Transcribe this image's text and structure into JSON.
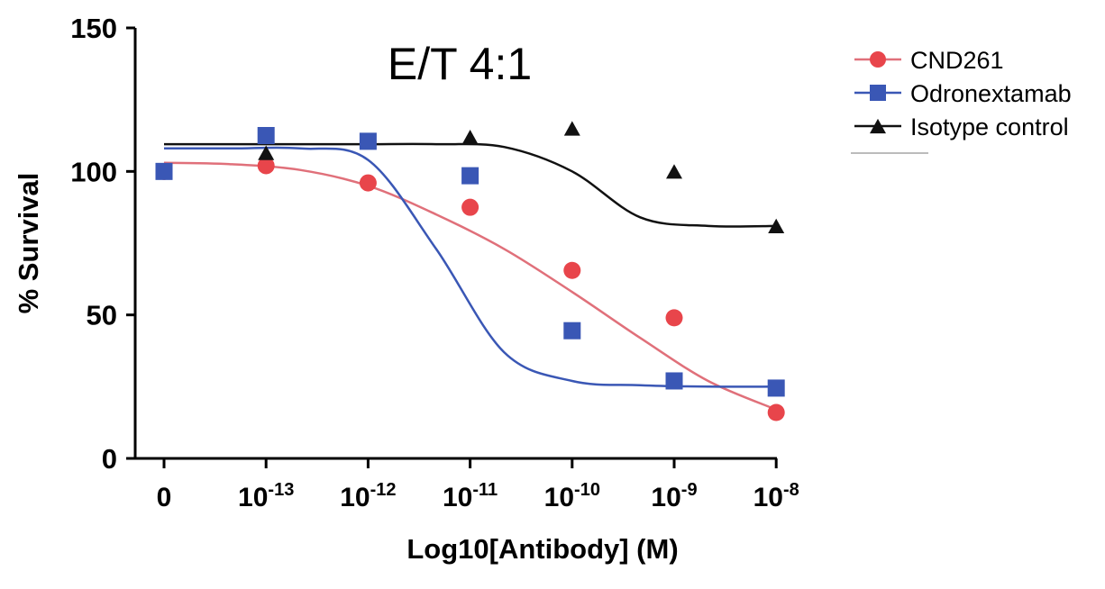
{
  "chart_data": {
    "type": "scatter",
    "title": "E/T 4:1",
    "xlabel": "Log10[Antibody] (M)",
    "ylabel": "% Survival",
    "ylim": [
      0,
      150
    ],
    "yticks": [
      0,
      50,
      100,
      150
    ],
    "x_tick_labels": [
      {
        "base": "0",
        "exp": ""
      },
      {
        "base": "10",
        "exp": "-13"
      },
      {
        "base": "10",
        "exp": "-12"
      },
      {
        "base": "10",
        "exp": "-11"
      },
      {
        "base": "10",
        "exp": "-10"
      },
      {
        "base": "10",
        "exp": "-9"
      },
      {
        "base": "10",
        "exp": "-8"
      }
    ],
    "grid": false,
    "legend_position": "top-right",
    "series": [
      {
        "name": "CND261",
        "marker": "circle",
        "color": "#e8454b",
        "line_color": "#e0707a",
        "values": [
          100,
          102,
          96,
          87.5,
          65.5,
          49,
          16
        ],
        "fit": [
          103,
          102.5,
          100.5,
          95,
          85,
          73,
          58,
          42,
          27,
          17
        ]
      },
      {
        "name": "Odronextamab",
        "marker": "square",
        "color": "#3a57b5",
        "line_color": "#3a57b5",
        "values": [
          100,
          112.5,
          110.5,
          98.5,
          44.5,
          27,
          24.5
        ],
        "fit": [
          108,
          108,
          108,
          104,
          73,
          37,
          27,
          25.5,
          25,
          25
        ]
      },
      {
        "name": "Isotype control",
        "marker": "triangle",
        "color": "#111111",
        "line_color": "#111111",
        "values": [
          null,
          106.5,
          null,
          112,
          115,
          100,
          81
        ],
        "fit": [
          109.5,
          109.5,
          109.5,
          109.5,
          109.5,
          108.5,
          100,
          84,
          81,
          81
        ]
      }
    ]
  }
}
